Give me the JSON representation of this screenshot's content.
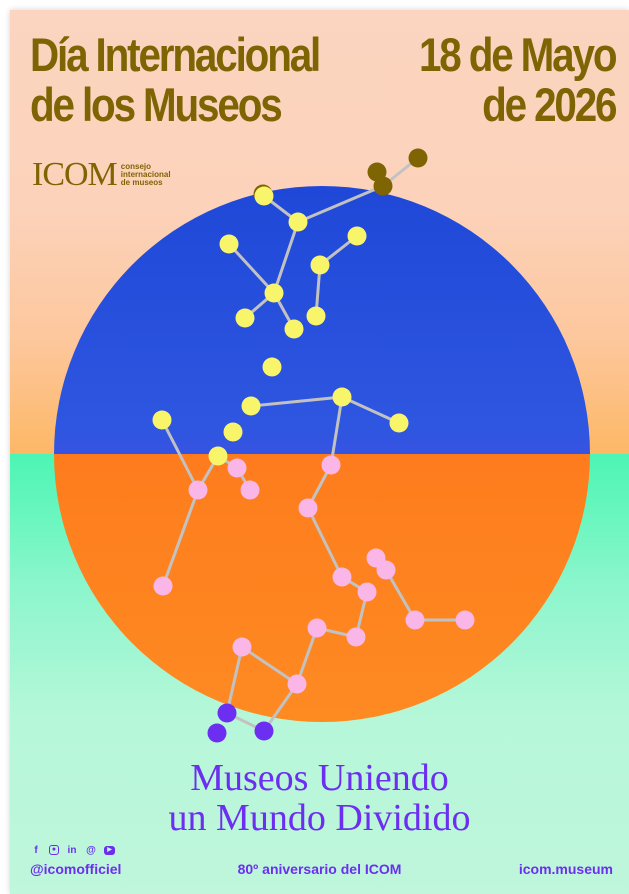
{
  "header": {
    "title_left": [
      "Día Internacional",
      "de los Museos"
    ],
    "title_right": [
      "18 de Mayo",
      "de 2026"
    ]
  },
  "logo": {
    "word": "ICOM",
    "sub": [
      "consejo",
      "internacional",
      "de museos"
    ]
  },
  "tagline": [
    "Museos Uniendo",
    "un Mundo Dividido"
  ],
  "social_icons": [
    "facebook-icon",
    "instagram-icon",
    "linkedin-icon",
    "threads-icon",
    "youtube-icon"
  ],
  "footer": {
    "handle": "@icomofficiel",
    "anniversary": "80º aniversario del ICOM",
    "website": "icom.museum"
  },
  "colors": {
    "olive": "#7f6404",
    "violet": "#6c2ef0",
    "node_yellow": "#f8f56a",
    "node_pink": "#f9b6e6",
    "node_olive": "#7f6404",
    "node_purple": "#6c2ef0"
  }
}
